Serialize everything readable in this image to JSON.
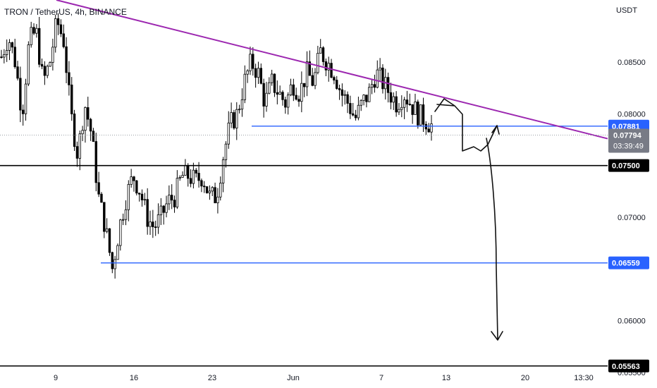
{
  "chart_data": {
    "type": "candlestick",
    "title": "TRON / TetherUS, 4h, BINANCE",
    "currency": "USDT",
    "ylim": [
      0.0535,
      0.091
    ],
    "y_ticks": [
      "0.08500",
      "0.08000",
      "0.07000",
      "0.06000",
      "0.05500"
    ],
    "x_ticks": [
      "9",
      "16",
      "23",
      "Jun",
      "7",
      "13",
      "20",
      "13:30"
    ],
    "last_price": "0.07794",
    "countdown": "03:39:49",
    "levels": [
      {
        "label": "0.07881",
        "value": 0.07881,
        "color": "#2962ff"
      },
      {
        "label": "0.07500",
        "value": 0.075,
        "color": "#000000"
      },
      {
        "label": "0.06559",
        "value": 0.06559,
        "color": "#2962ff"
      },
      {
        "label": "0.05563",
        "value": 0.05563,
        "color": "#000000"
      }
    ],
    "trendline": {
      "color": "#9c27b0",
      "from": 0.091,
      "to": 0.0776
    },
    "close_path": [
      0.0855,
      0.0875,
      0.085,
      0.08,
      0.087,
      0.088,
      0.083,
      0.085,
      0.089,
      0.087,
      0.08,
      0.076,
      0.081,
      0.078,
      0.072,
      0.069,
      0.065,
      0.069,
      0.072,
      0.074,
      0.0725,
      0.07,
      0.069,
      0.07,
      0.0715,
      0.072,
      0.074,
      0.074,
      0.0735,
      0.074,
      0.072,
      0.072,
      0.076,
      0.079,
      0.08,
      0.083,
      0.085,
      0.084,
      0.081,
      0.083,
      0.082,
      0.081,
      0.083,
      0.082,
      0.084,
      0.083,
      0.086,
      0.085,
      0.084,
      0.082,
      0.081,
      0.0795,
      0.081,
      0.082,
      0.084,
      0.083,
      0.082,
      0.081,
      0.082,
      0.081,
      0.08,
      0.0795,
      0.0789
    ]
  }
}
